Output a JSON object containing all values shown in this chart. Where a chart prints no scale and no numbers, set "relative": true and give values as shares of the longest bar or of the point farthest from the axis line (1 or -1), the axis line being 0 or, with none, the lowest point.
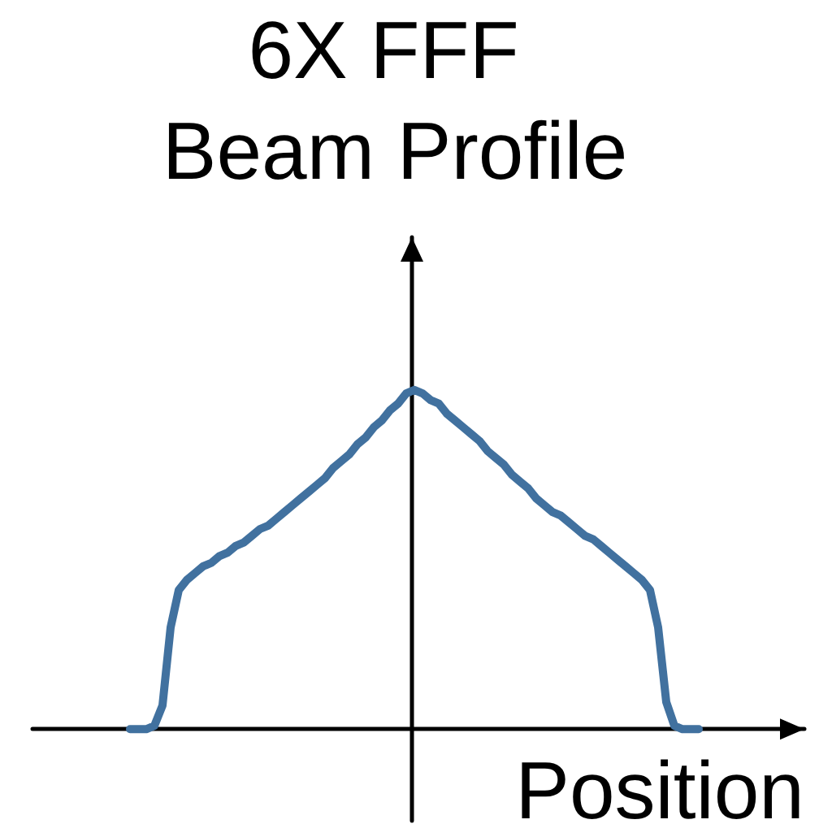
{
  "chart_data": {
    "type": "line",
    "title": "6X FFF Beam Profile",
    "xlabel": "Position",
    "relative": true,
    "marker": "none",
    "line_style": "solid",
    "color": "#41719f",
    "categories": [
      null,
      null,
      null,
      null,
      null,
      null,
      null,
      null,
      null,
      null,
      null,
      null,
      null,
      null,
      null,
      null,
      null,
      null,
      null,
      null,
      null,
      null,
      null,
      null,
      null,
      null,
      null,
      null,
      null,
      null,
      null,
      null,
      null,
      null,
      null,
      null,
      null,
      null,
      null,
      null,
      null,
      null,
      null,
      null,
      null,
      null,
      null,
      null,
      null,
      null,
      null,
      null,
      null,
      null,
      null,
      null,
      null,
      null,
      null,
      null,
      null,
      null,
      null,
      null,
      null,
      null,
      null,
      null,
      null,
      null,
      null,
      null,
      null,
      null,
      null,
      null,
      null,
      null,
      null,
      null,
      null,
      null,
      null,
      null,
      null,
      null,
      null,
      null,
      null,
      null,
      null,
      null,
      null,
      null,
      null,
      null
    ],
    "values": [
      null,
      null,
      null,
      null,
      null,
      null,
      null,
      null,
      null,
      null,
      null,
      null,
      0,
      0,
      0,
      0.01,
      0.07,
      0.3,
      0.41,
      0.44,
      0.46,
      0.48,
      0.49,
      0.51,
      0.52,
      0.54,
      0.55,
      0.57,
      0.59,
      0.6,
      0.62,
      0.64,
      0.66,
      0.68,
      0.7,
      0.72,
      0.74,
      0.77,
      0.79,
      0.81,
      0.84,
      0.86,
      0.89,
      0.91,
      0.94,
      0.96,
      0.99,
      1.0,
      0.99,
      0.97,
      0.96,
      0.93,
      0.91,
      0.89,
      0.87,
      0.85,
      0.82,
      0.8,
      0.78,
      0.75,
      0.73,
      0.71,
      0.68,
      0.66,
      0.64,
      0.63,
      0.61,
      0.59,
      0.57,
      0.56,
      0.54,
      0.52,
      0.5,
      0.48,
      0.46,
      0.44,
      0.41,
      0.3,
      0.08,
      0.01,
      0,
      0,
      0,
      null,
      null,
      null,
      null,
      null,
      null,
      null,
      null,
      null,
      null,
      null,
      null,
      null
    ]
  }
}
